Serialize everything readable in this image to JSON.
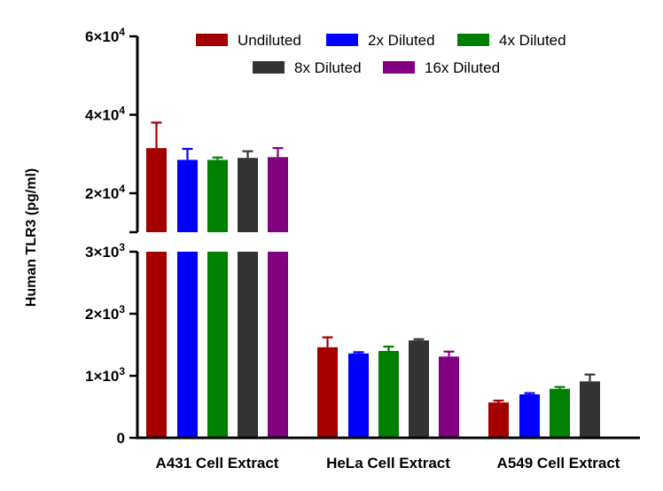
{
  "chart_data": {
    "type": "bar",
    "title": "",
    "xlabel": "",
    "ylabel": "Human TLR3 (pg/ml)",
    "categories": [
      "A431 Cell Extract",
      "HeLa Cell Extract",
      "A549 Cell Extract"
    ],
    "series": [
      {
        "name": "Undiluted",
        "color": "#a50000",
        "values": [
          31500,
          1460,
          570
        ],
        "errors": [
          6500,
          160,
          30
        ]
      },
      {
        "name": "2x Diluted",
        "color": "#0000ff",
        "values": [
          28500,
          1360,
          700
        ],
        "errors": [
          2800,
          20,
          20
        ]
      },
      {
        "name": "4x Diluted",
        "color": "#008000",
        "values": [
          28500,
          1400,
          790
        ],
        "errors": [
          600,
          70,
          30
        ]
      },
      {
        "name": "8x Diluted",
        "color": "#333333",
        "values": [
          29000,
          1570,
          910
        ],
        "errors": [
          1700,
          20,
          110
        ]
      },
      {
        "name": "16x Diluted",
        "color": "#800080",
        "values": [
          29200,
          1310,
          null
        ],
        "errors": [
          2300,
          80,
          null
        ]
      }
    ],
    "axis": {
      "broken": true,
      "lower_segment": {
        "ylim": [
          0,
          3000
        ],
        "ticks": [
          0,
          1000,
          2000,
          3000
        ]
      },
      "upper_segment": {
        "ylim": [
          15000,
          60000
        ],
        "ticks": [
          20000,
          40000,
          60000
        ]
      }
    },
    "tick_labels": {
      "0": {
        "base": "0",
        "exp": ""
      },
      "1000": {
        "base": "1×10",
        "exp": "3"
      },
      "2000": {
        "base": "2×10",
        "exp": "3"
      },
      "3000": {
        "base": "3×10",
        "exp": "3"
      },
      "20000": {
        "base": "2×10",
        "exp": "4"
      },
      "40000": {
        "base": "4×10",
        "exp": "4"
      },
      "60000": {
        "base": "6×10",
        "exp": "4"
      }
    },
    "legend": {
      "position": "top-right",
      "rows": [
        [
          "Undiluted",
          "2x Diluted",
          "4x Diluted"
        ],
        [
          "8x Diluted",
          "16x Diluted"
        ]
      ]
    },
    "grid": false
  }
}
